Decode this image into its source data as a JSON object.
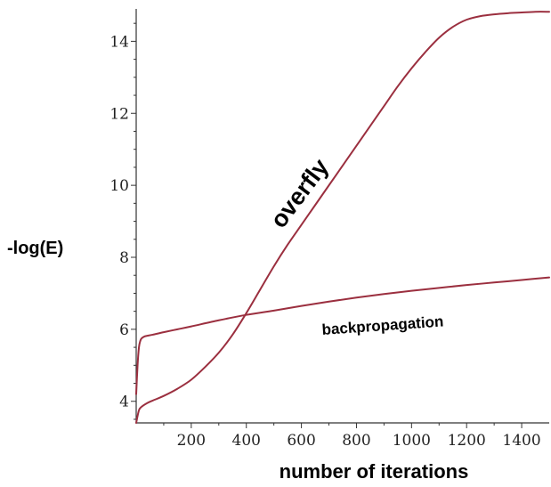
{
  "chart_data": {
    "type": "line",
    "title": "",
    "xlabel": "number of iterations",
    "ylabel": "-log(E)",
    "xlim": [
      0,
      1500
    ],
    "ylim": [
      3.4,
      14.9
    ],
    "x_ticks": [
      200,
      400,
      600,
      800,
      1000,
      1200,
      1400
    ],
    "x_tick_labels": [
      "200",
      "400",
      "600",
      "800",
      "1000",
      "1200",
      "1400"
    ],
    "y_ticks": [
      4,
      6,
      8,
      10,
      12,
      14
    ],
    "y_tick_labels": [
      "4",
      "6",
      "8",
      "10",
      "12",
      "14"
    ],
    "grid": false,
    "legend": "none",
    "series": [
      {
        "name": "overfly",
        "color": "#9b2f3f",
        "x": [
          0,
          10,
          20,
          40,
          60,
          100,
          150,
          200,
          250,
          300,
          350,
          400,
          450,
          500,
          550,
          600,
          650,
          700,
          750,
          800,
          850,
          900,
          950,
          1000,
          1050,
          1100,
          1150,
          1200,
          1250,
          1300,
          1350,
          1400,
          1450,
          1500
        ],
        "y": [
          3.4,
          3.75,
          3.85,
          3.95,
          4.02,
          4.15,
          4.35,
          4.6,
          4.95,
          5.35,
          5.85,
          6.45,
          7.1,
          7.75,
          8.35,
          8.9,
          9.45,
          10.0,
          10.55,
          11.1,
          11.65,
          12.2,
          12.75,
          13.25,
          13.7,
          14.1,
          14.4,
          14.6,
          14.7,
          14.75,
          14.78,
          14.8,
          14.82,
          14.82
        ]
      },
      {
        "name": "backpropagation",
        "color": "#9b2f3f",
        "x": [
          0,
          5,
          10,
          15,
          20,
          30,
          40,
          60,
          100,
          150,
          200,
          300,
          400,
          500,
          600,
          700,
          800,
          900,
          1000,
          1100,
          1200,
          1300,
          1400,
          1500
        ],
        "y": [
          4.2,
          5.0,
          5.5,
          5.68,
          5.75,
          5.8,
          5.82,
          5.85,
          5.92,
          6.0,
          6.08,
          6.25,
          6.4,
          6.52,
          6.65,
          6.77,
          6.88,
          6.98,
          7.07,
          7.15,
          7.23,
          7.3,
          7.37,
          7.44
        ]
      }
    ],
    "annotations": [
      {
        "text": "overfly"
      },
      {
        "text": "backpropagation"
      }
    ]
  }
}
